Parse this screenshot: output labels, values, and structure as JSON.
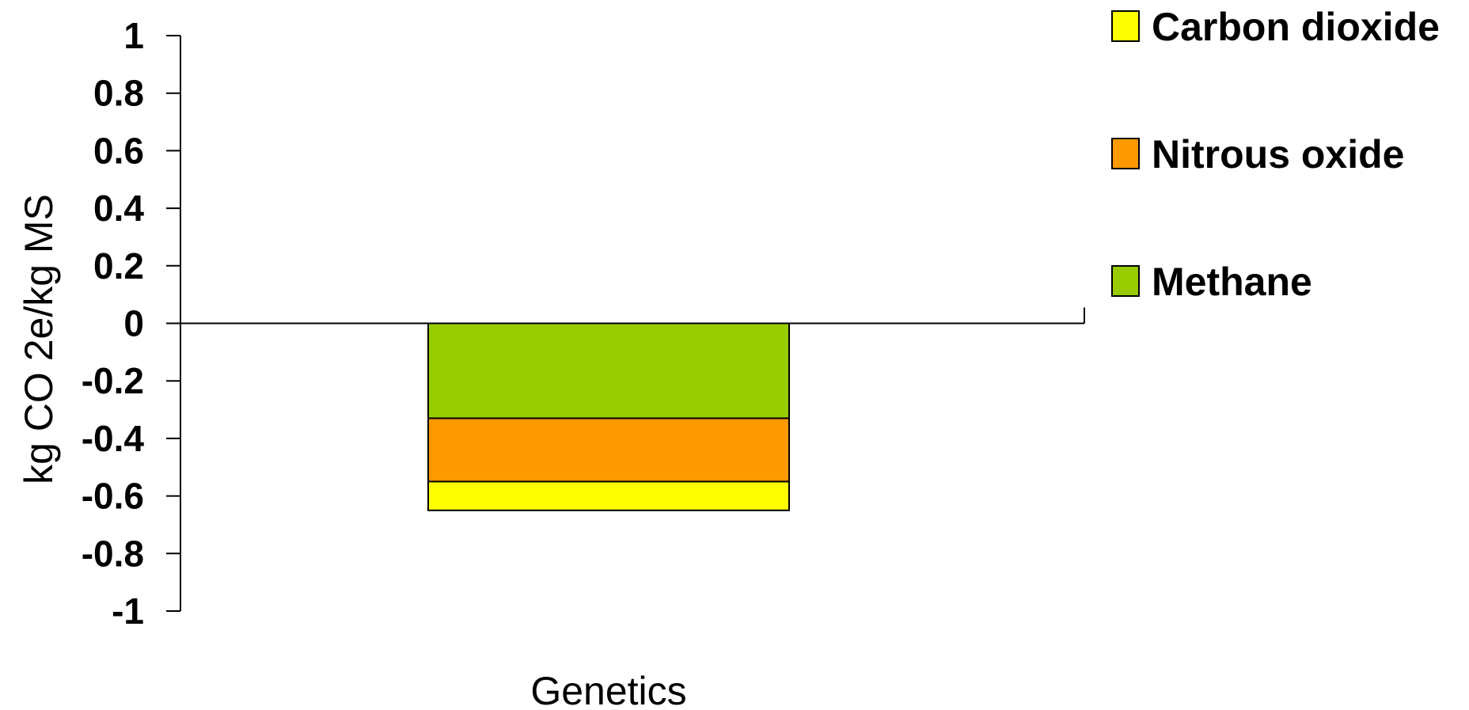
{
  "chart_data": {
    "type": "bar",
    "stacked": true,
    "categories": [
      "Genetics"
    ],
    "series": [
      {
        "name": "Methane",
        "values": [
          -0.33
        ],
        "color": "#99cc00"
      },
      {
        "name": "Nitrous oxide",
        "values": [
          -0.22
        ],
        "color": "#ff9900"
      },
      {
        "name": "Carbon dioxide",
        "values": [
          -0.1
        ],
        "color": "#ffff00"
      }
    ],
    "legend_entries": [
      "Carbon dioxide",
      "Nitrous oxide",
      "Methane"
    ],
    "legend_position": "top-right",
    "ylabel": "kg CO 2e/kg MS",
    "xlabel": "",
    "ylim": [
      -1,
      1
    ],
    "yticks": [
      1,
      0.8,
      0.6,
      0.4,
      0.2,
      0,
      -0.2,
      -0.4,
      -0.6,
      -0.8,
      -1
    ],
    "ytick_labels": [
      "1",
      "0.8",
      "0.6",
      "0.4",
      "0.2",
      "0",
      "-0.2",
      "-0.4",
      "-0.6",
      "-0.8",
      "-1"
    ],
    "grid": false
  }
}
